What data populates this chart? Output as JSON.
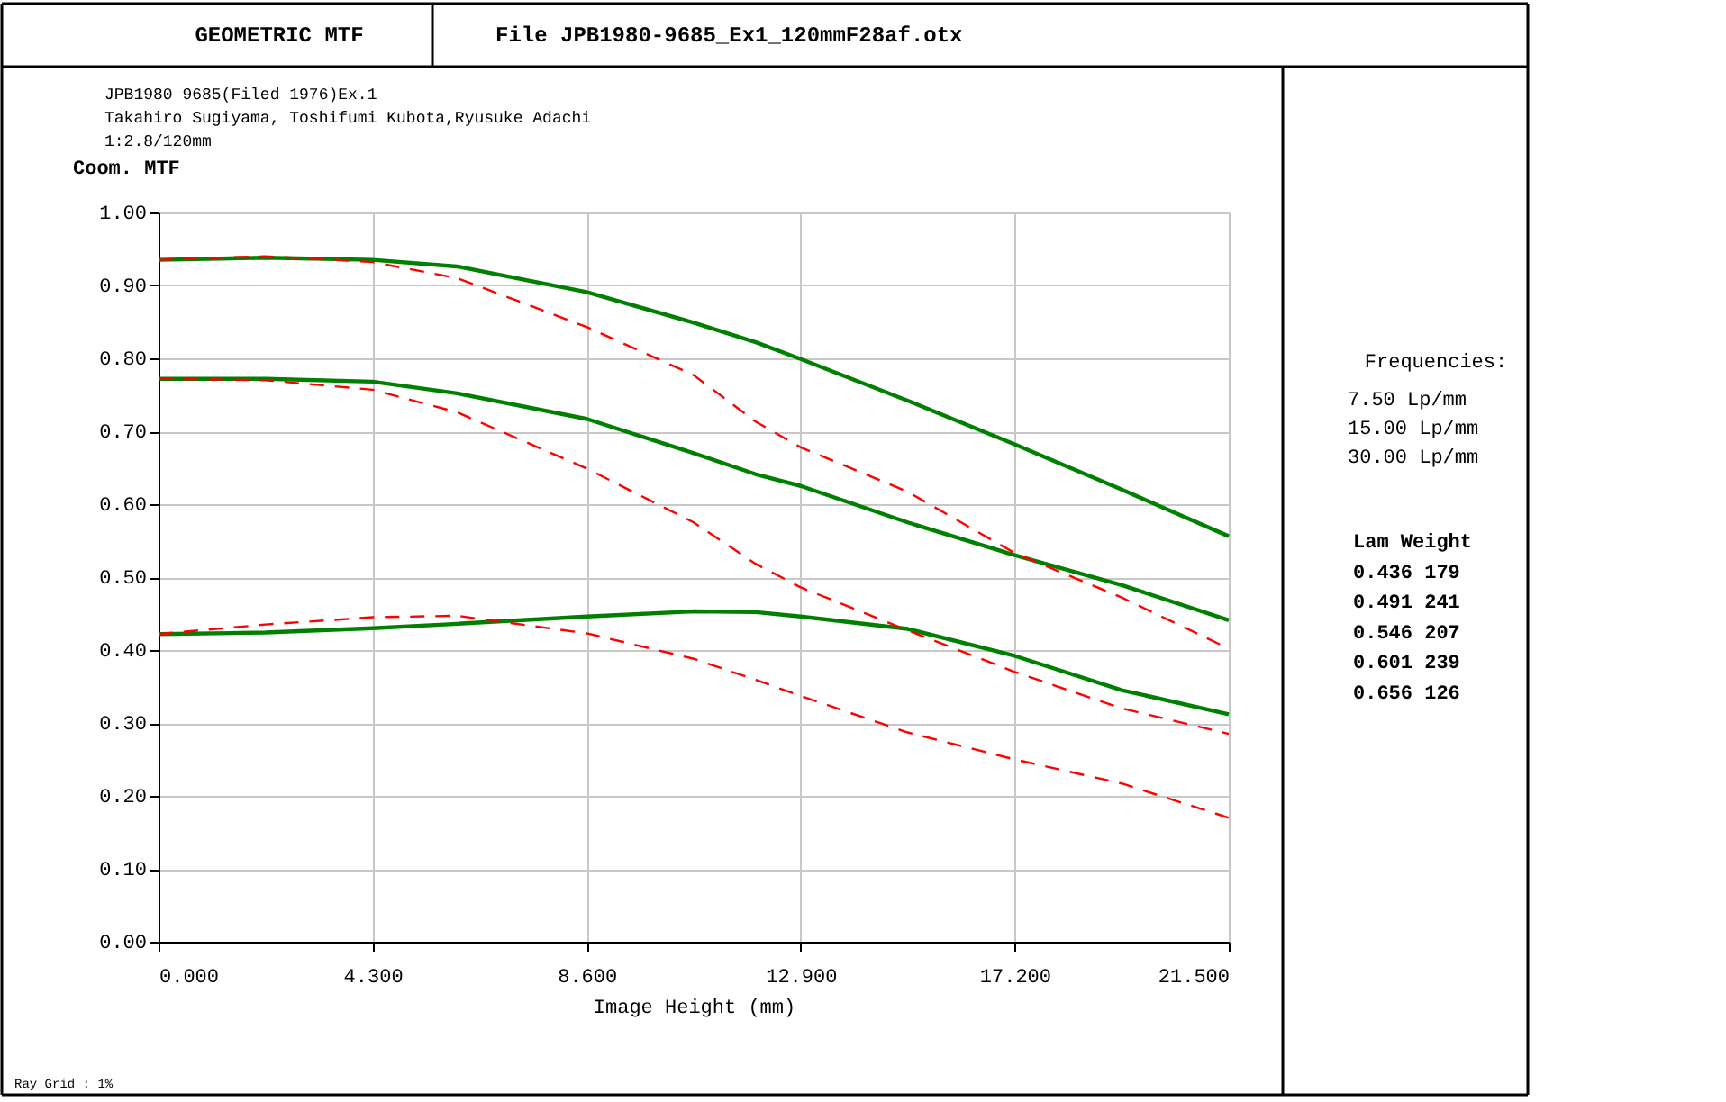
{
  "chart_data": {
    "type": "line",
    "title": "GEOMETRIC MTF",
    "subtitle": [
      "File JPB1980-9685_Ex1_120mmF28af.otx",
      "JPB1980 9685(Filed 1976)Ex.1",
      "Takahiro Sugiyama, Toshifumi Kubota,Ryusuke Adachi",
      "1:2.8/120mm"
    ],
    "xlabel": "Image Height (mm)",
    "ylabel": "Coom. MTF",
    "annotations": [
      "Frequencies:",
      "7.50 Lp/mm",
      "15.00 Lp/mm",
      "30.00 Lp/mm",
      "Lam Weight",
      "0.436 179",
      "0.491 241",
      "0.546 207",
      "0.601 239",
      "0.656 126",
      "Ray Grid : 1%"
    ],
    "x": [
      0,
      2.15,
      4.3,
      6.0,
      8.6,
      10.75,
      12.0,
      12.9,
      15.05,
      17.2,
      19.35,
      21.5
    ],
    "series": [
      {
        "color": "#008000",
        "line_style": "solid",
        "values": [
          0.935,
          0.938,
          0.935,
          0.926,
          0.891,
          0.849,
          0.822,
          0.799,
          0.742,
          0.682,
          0.62,
          0.556
        ]
      },
      {
        "color": "#ff0000",
        "line_style": "dashed",
        "values": [
          0.935,
          0.94,
          0.932,
          0.91,
          0.843,
          0.777,
          0.713,
          0.678,
          0.617,
          0.533,
          0.472,
          0.402
        ]
      },
      {
        "color": "#008000",
        "line_style": "solid",
        "values": [
          0.772,
          0.772,
          0.768,
          0.752,
          0.717,
          0.67,
          0.641,
          0.625,
          0.575,
          0.53,
          0.489,
          0.441
        ]
      },
      {
        "color": "#ff0000",
        "line_style": "dashed",
        "values": [
          0.772,
          0.77,
          0.757,
          0.726,
          0.649,
          0.575,
          0.518,
          0.486,
          0.427,
          0.37,
          0.32,
          0.285
        ]
      },
      {
        "color": "#008000",
        "line_style": "solid",
        "values": [
          0.422,
          0.424,
          0.43,
          0.436,
          0.446,
          0.453,
          0.452,
          0.446,
          0.429,
          0.392,
          0.345,
          0.312
        ]
      },
      {
        "color": "#ff0000",
        "line_style": "dashed",
        "values": [
          0.422,
          0.435,
          0.445,
          0.447,
          0.423,
          0.388,
          0.359,
          0.337,
          0.287,
          0.25,
          0.217,
          0.17
        ]
      }
    ],
    "xlim": [
      0,
      21.5
    ],
    "xticks": [
      {
        "value": 0,
        "label": "0.000"
      },
      {
        "value": 4.3,
        "label": "4.300"
      },
      {
        "value": 8.6,
        "label": "8.600"
      },
      {
        "value": 12.9,
        "label": "12.900"
      },
      {
        "value": 17.2,
        "label": "17.200"
      },
      {
        "value": 21.5,
        "label": "21.500"
      }
    ],
    "ylim": [
      0,
      1
    ],
    "yticks": [
      {
        "value": 0,
        "label": "0.00"
      },
      {
        "value": 0.1,
        "label": "0.10"
      },
      {
        "value": 0.2,
        "label": "0.20"
      },
      {
        "value": 0.3,
        "label": "0.30"
      },
      {
        "value": 0.4,
        "label": "0.40"
      },
      {
        "value": 0.5,
        "label": "0.50"
      },
      {
        "value": 0.6,
        "label": "0.60"
      },
      {
        "value": 0.7,
        "label": "0.70"
      },
      {
        "value": 0.8,
        "label": "0.80"
      },
      {
        "value": 0.9,
        "label": "0.90"
      },
      {
        "value": 1,
        "label": "1.00"
      }
    ],
    "grid": true,
    "legend": false,
    "marker": "none"
  }
}
